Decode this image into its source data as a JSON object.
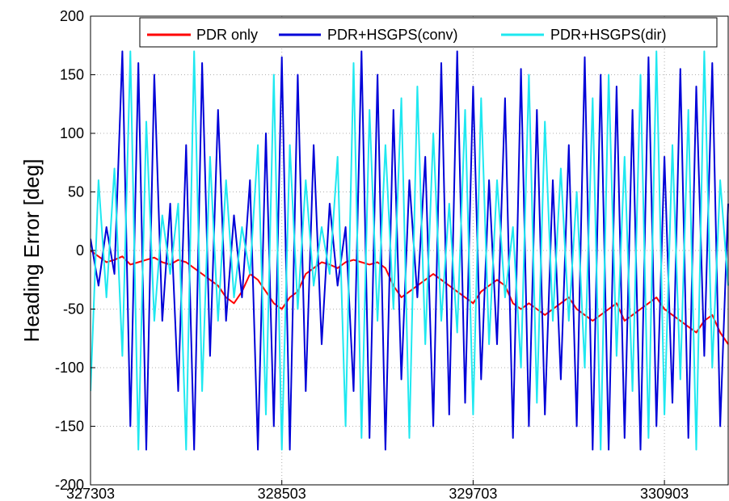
{
  "chart_data": {
    "type": "line",
    "title": "",
    "xlabel": "",
    "ylabel": "Heading Error [deg]",
    "xlim": [
      327303,
      331303
    ],
    "ylim": [
      -200,
      200
    ],
    "x_ticks": [
      327303,
      328503,
      329703,
      330903
    ],
    "x_tick_labels": [
      "327303",
      "328503",
      "329703",
      "330903"
    ],
    "y_ticks": [
      200,
      150,
      100,
      50,
      0,
      -50,
      -100,
      -150,
      -200
    ],
    "y_tick_labels": [
      "200",
      "150",
      "100",
      "50",
      "0",
      "-50",
      "-100",
      "-150",
      "-200"
    ],
    "grid": true,
    "legend_position": "top-right",
    "colors": {
      "pdr_only": "#ff0000",
      "conv": "#0000d8",
      "dir": "#1ee8f0"
    },
    "note_data_sampling": "values approximated at 50-unit intervals",
    "series": [
      {
        "name": "PDR only",
        "x": [
          327303,
          327353,
          327403,
          327453,
          327503,
          327553,
          327603,
          327653,
          327703,
          327753,
          327803,
          327853,
          327903,
          327953,
          328003,
          328053,
          328103,
          328153,
          328203,
          328253,
          328303,
          328353,
          328403,
          328453,
          328503,
          328553,
          328603,
          328653,
          328703,
          328753,
          328803,
          328853,
          328903,
          328953,
          329003,
          329053,
          329103,
          329153,
          329203,
          329253,
          329303,
          329353,
          329403,
          329453,
          329503,
          329553,
          329603,
          329653,
          329703,
          329753,
          329803,
          329853,
          329903,
          329953,
          330003,
          330053,
          330103,
          330153,
          330203,
          330253,
          330303,
          330353,
          330403,
          330453,
          330503,
          330553,
          330603,
          330653,
          330703,
          330753,
          330803,
          330853,
          330903,
          330953,
          331003,
          331053,
          331103,
          331153,
          331203,
          331253,
          331303
        ],
        "values": [
          0,
          -5,
          -10,
          -8,
          -5,
          -12,
          -10,
          -8,
          -6,
          -10,
          -12,
          -8,
          -10,
          -15,
          -20,
          -25,
          -30,
          -40,
          -45,
          -35,
          -20,
          -25,
          -35,
          -45,
          -50,
          -40,
          -35,
          -20,
          -15,
          -10,
          -12,
          -15,
          -10,
          -8,
          -10,
          -12,
          -10,
          -15,
          -30,
          -40,
          -35,
          -30,
          -25,
          -20,
          -25,
          -30,
          -35,
          -40,
          -45,
          -35,
          -30,
          -25,
          -30,
          -45,
          -50,
          -45,
          -50,
          -55,
          -50,
          -45,
          -40,
          -50,
          -55,
          -60,
          -55,
          -50,
          -45,
          -60,
          -55,
          -50,
          -45,
          -40,
          -50,
          -55,
          -60,
          -65,
          -70,
          -60,
          -55,
          -70,
          -80
        ]
      },
      {
        "name": "PDR+HSGPS(conv)",
        "x": [
          327303,
          327353,
          327403,
          327453,
          327503,
          327553,
          327603,
          327653,
          327703,
          327753,
          327803,
          327853,
          327903,
          327953,
          328003,
          328053,
          328103,
          328153,
          328203,
          328253,
          328303,
          328353,
          328403,
          328453,
          328503,
          328553,
          328603,
          328653,
          328703,
          328753,
          328803,
          328853,
          328903,
          328953,
          329003,
          329053,
          329103,
          329153,
          329203,
          329253,
          329303,
          329353,
          329403,
          329453,
          329503,
          329553,
          329603,
          329653,
          329703,
          329753,
          329803,
          329853,
          329903,
          329953,
          330003,
          330053,
          330103,
          330153,
          330203,
          330253,
          330303,
          330353,
          330403,
          330453,
          330503,
          330553,
          330603,
          330653,
          330703,
          330753,
          330803,
          330853,
          330903,
          330953,
          331003,
          331053,
          331103,
          331153,
          331203,
          331253,
          331303
        ],
        "values": [
          10,
          -30,
          20,
          -20,
          170,
          -150,
          160,
          -170,
          150,
          -60,
          40,
          -120,
          90,
          -170,
          160,
          -90,
          120,
          -60,
          30,
          -40,
          60,
          -170,
          100,
          -150,
          165,
          -170,
          150,
          -120,
          90,
          -80,
          40,
          -30,
          20,
          -120,
          170,
          -160,
          150,
          -170,
          120,
          -110,
          60,
          -40,
          80,
          -150,
          160,
          -140,
          170,
          -130,
          140,
          -110,
          60,
          -80,
          130,
          -160,
          155,
          -150,
          120,
          -140,
          60,
          -110,
          90,
          -150,
          165,
          -170,
          150,
          -170,
          140,
          -160,
          120,
          -170,
          165,
          -150,
          80,
          -130,
          155,
          -160,
          140,
          -90,
          160,
          -150,
          40
        ]
      },
      {
        "name": "PDR+HSGPS(dir)",
        "x": [
          327303,
          327353,
          327403,
          327453,
          327503,
          327553,
          327603,
          327653,
          327703,
          327753,
          327803,
          327853,
          327903,
          327953,
          328003,
          328053,
          328103,
          328153,
          328203,
          328253,
          328303,
          328353,
          328403,
          328453,
          328503,
          328553,
          328603,
          328653,
          328703,
          328753,
          328803,
          328853,
          328903,
          328953,
          329003,
          329053,
          329103,
          329153,
          329203,
          329253,
          329303,
          329353,
          329403,
          329453,
          329503,
          329553,
          329603,
          329653,
          329703,
          329753,
          329803,
          329853,
          329903,
          329953,
          330003,
          330053,
          330103,
          330153,
          330203,
          330253,
          330303,
          330353,
          330403,
          330453,
          330503,
          330553,
          330603,
          330653,
          330703,
          330753,
          330803,
          330853,
          330903,
          330953,
          331003,
          331053,
          331103,
          331153,
          331203,
          331253,
          331303
        ],
        "values": [
          -120,
          60,
          -40,
          70,
          -90,
          170,
          -170,
          110,
          -60,
          30,
          -20,
          40,
          -170,
          170,
          -120,
          80,
          -60,
          60,
          -40,
          20,
          -20,
          90,
          -140,
          150,
          -170,
          90,
          -50,
          60,
          -30,
          20,
          -20,
          80,
          -150,
          160,
          -160,
          120,
          -60,
          90,
          -50,
          130,
          -160,
          140,
          -80,
          100,
          -60,
          40,
          -70,
          120,
          -140,
          130,
          -80,
          60,
          -40,
          20,
          -100,
          150,
          -130,
          110,
          -60,
          70,
          -60,
          50,
          -100,
          130,
          -170,
          150,
          -90,
          80,
          -120,
          150,
          -160,
          170,
          -140,
          90,
          -110,
          120,
          -170,
          170,
          -100,
          60,
          -30
        ]
      }
    ]
  }
}
